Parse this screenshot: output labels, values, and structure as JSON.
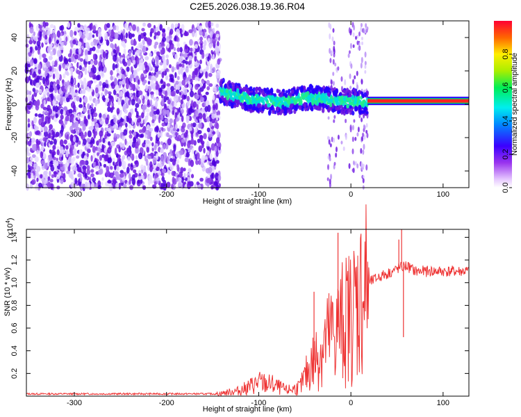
{
  "title": "C2E5.2026.038.19.36.R04",
  "chart_data": [
    {
      "type": "heatmap",
      "name": "spectrogram",
      "xlabel": "Height of straight line (km)",
      "ylabel": "Frequency (Hz)",
      "xlim": [
        -352,
        128
      ],
      "ylim": [
        -50,
        50
      ],
      "xticks": [
        -300,
        -200,
        -100,
        0,
        100
      ],
      "yticks": [
        -40,
        -20,
        0,
        20,
        40
      ],
      "colorbar": {
        "label": "Normalized spectral amplitude",
        "range": [
          0,
          1
        ],
        "ticks": [
          "0.0",
          "0.2",
          "0.4",
          "0.6",
          "0.8"
        ]
      },
      "regions": [
        {
          "label": "broadband noise",
          "x_range": [
            -352,
            -142
          ],
          "f_range": [
            -50,
            48
          ],
          "amplitude": 0.15
        },
        {
          "label": "noisy tone",
          "x_range": [
            -142,
            18
          ],
          "center_f": [
            8,
            3,
            1,
            4,
            2,
            1
          ],
          "amplitude": 0.4
        },
        {
          "label": "noise burst",
          "x_range": [
            -25,
            18
          ],
          "f_range": [
            -50,
            48
          ],
          "amplitude": 0.12
        },
        {
          "label": "clean carrier",
          "x_range": [
            18,
            128
          ],
          "center_f": 2,
          "amplitude": 0.95
        }
      ]
    },
    {
      "type": "line",
      "name": "snr",
      "xlabel": "Height of straight line (km)",
      "ylabel": "SNR (10 * v/v)",
      "scale_label": "(x10",
      "scale_exp": "4",
      "scale_close": ")",
      "xlim": [
        -352,
        128
      ],
      "ylim": [
        0,
        1.47
      ],
      "xticks": [
        -300,
        -200,
        -100,
        0,
        100
      ],
      "yticks": [
        0.2,
        0.4,
        0.6,
        0.8,
        1.0,
        1.2,
        1.4
      ],
      "color": "#ee3333",
      "series": [
        {
          "name": "SNR",
          "x": [
            -352,
            -200,
            -145,
            -120,
            -100,
            -85,
            -70,
            -55,
            -45,
            -30,
            -15,
            0,
            10,
            20,
            30,
            40,
            50,
            60,
            70,
            80,
            90,
            100,
            128
          ],
          "y": [
            0.02,
            0.02,
            0.02,
            0.05,
            0.12,
            0.1,
            0.05,
            0.08,
            0.25,
            0.45,
            0.6,
            0.72,
            0.88,
            1.0,
            1.05,
            1.08,
            1.12,
            1.15,
            1.1,
            1.1,
            1.1,
            1.1,
            1.1
          ]
        }
      ],
      "spikes": [
        {
          "x": -14,
          "y": 1.44
        },
        {
          "x": 55,
          "y": 1.47
        },
        {
          "x": 57,
          "y": 0.52
        },
        {
          "x": 52,
          "y": 1.38
        },
        {
          "x": -40,
          "y": 0.92
        }
      ]
    }
  ]
}
